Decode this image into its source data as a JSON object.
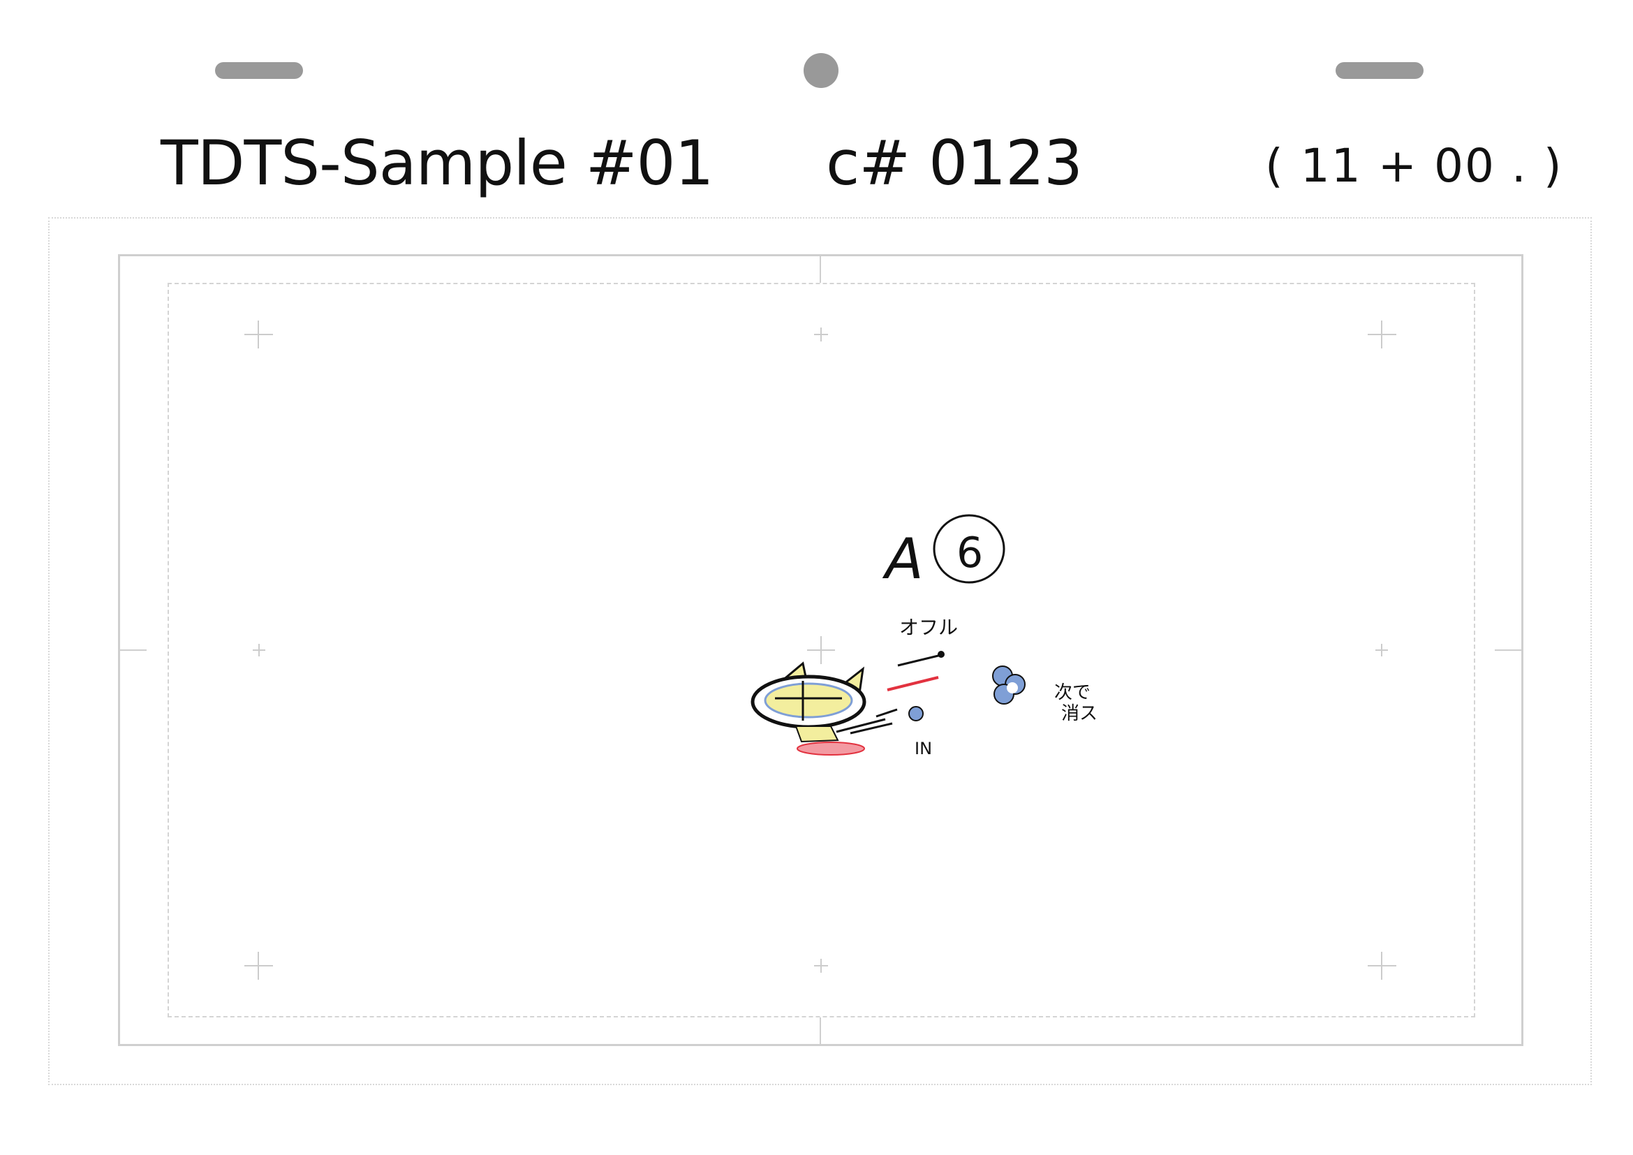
{
  "header": {
    "title": "TDTS-Sample #01",
    "cut": "c# 0123",
    "time": "( 11 + 00 . )"
  },
  "drawing": {
    "cel_label": "A",
    "cel_number": "6",
    "note_top": "オフル",
    "note_in": "IN",
    "note_right_1": "次で",
    "note_right_2": "消ス"
  },
  "colors": {
    "ink": "#111111",
    "peg": "#999999",
    "frame": "#cfcfcf",
    "guide": "#d4d4d4",
    "face_fill": "#f3ee9e",
    "shade_blue": "#7f9fd6",
    "red_line": "#e2323f",
    "red_fill": "#f39aa2"
  },
  "icons": [
    "peg-slot-icon",
    "peg-hole-icon",
    "crosshair-icon"
  ]
}
